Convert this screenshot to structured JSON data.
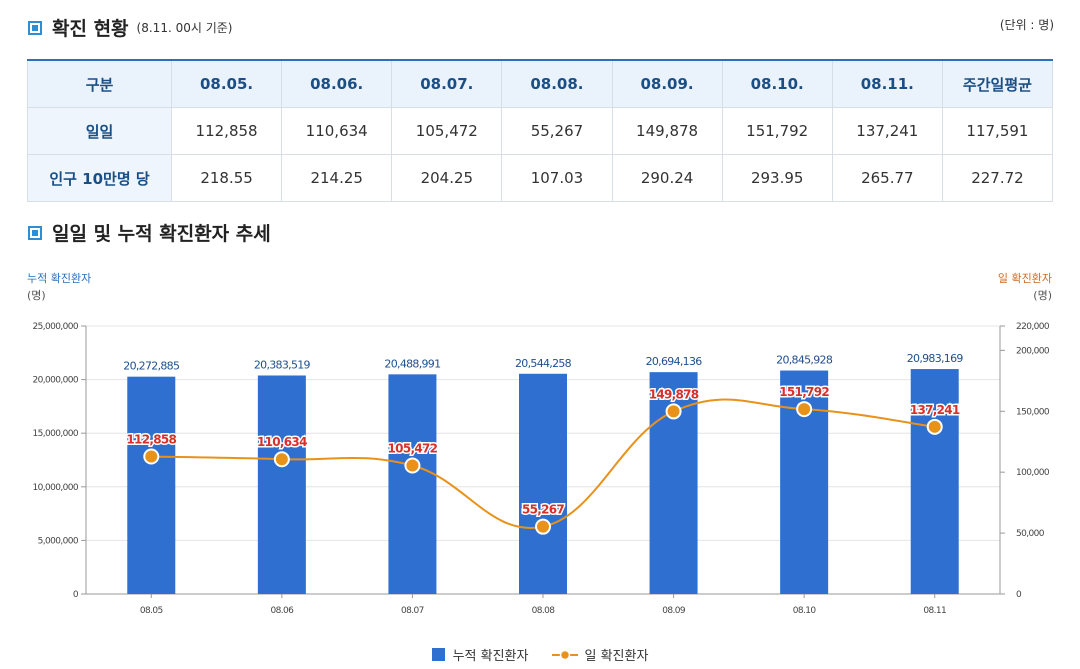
{
  "section1": {
    "title": "확진 현황",
    "subtitle": "(8.11. 00시 기준)",
    "unit": "(단위 : 명)"
  },
  "table": {
    "headers": [
      "구분",
      "08.05.",
      "08.06.",
      "08.07.",
      "08.08.",
      "08.09.",
      "08.10.",
      "08.11.",
      "주간일평균"
    ],
    "rows": [
      {
        "label": "일일",
        "values": [
          "112,858",
          "110,634",
          "105,472",
          "55,267",
          "149,878",
          "151,792",
          "137,241",
          "117,591"
        ]
      },
      {
        "label": "인구 10만명 당",
        "values": [
          "218.55",
          "214.25",
          "204.25",
          "107.03",
          "290.24",
          "293.95",
          "265.77",
          "227.72"
        ]
      }
    ]
  },
  "section2": {
    "title": "일일 및 누적 확진환자 추세"
  },
  "chart_data": {
    "type": "bar+line",
    "categories": [
      "08.05",
      "08.06",
      "08.07",
      "08.08",
      "08.09",
      "08.10",
      "08.11"
    ],
    "series": [
      {
        "name": "누적 확진환자",
        "type": "bar",
        "axis": "left",
        "values": [
          20272885,
          20383519,
          20488991,
          20544258,
          20694136,
          20845928,
          20983169
        ],
        "labels": [
          "20,272,885",
          "20,383,519",
          "20,488,991",
          "20,544,258",
          "20,694,136",
          "20,845,928",
          "20,983,169"
        ]
      },
      {
        "name": "일 확진환자",
        "type": "line",
        "axis": "right",
        "values": [
          112858,
          110634,
          105472,
          55267,
          149878,
          151792,
          137241
        ],
        "labels": [
          "112,858",
          "110,634",
          "105,472",
          "55,267",
          "149,878",
          "151,792",
          "137,241"
        ]
      }
    ],
    "left_axis": {
      "label": "누적 확진환자",
      "unit": "(명)",
      "range": [
        0,
        25000000
      ],
      "ticks": [
        0,
        5000000,
        10000000,
        15000000,
        20000000,
        25000000
      ],
      "tick_labels": [
        "0",
        "5,000,000",
        "10,000,000",
        "15,000,000",
        "20,000,000",
        "25,000,000"
      ]
    },
    "right_axis": {
      "label": "일 확진환자",
      "unit": "(명)",
      "range": [
        0,
        220000
      ],
      "ticks": [
        0,
        50000,
        100000,
        150000,
        200000,
        220000
      ],
      "tick_labels": [
        "0",
        "50,000",
        "100,000",
        "150,000",
        "200,000",
        "220,000"
      ]
    },
    "legend": [
      "누적 확진환자",
      "일 확진환자"
    ],
    "colors": {
      "bar": "#2f6fd0",
      "line": "#e8921a",
      "bar_label": "#1f4f8f",
      "line_label": "#d6302a",
      "left_label": "#2c6fc0",
      "right_label": "#d2691e"
    }
  }
}
